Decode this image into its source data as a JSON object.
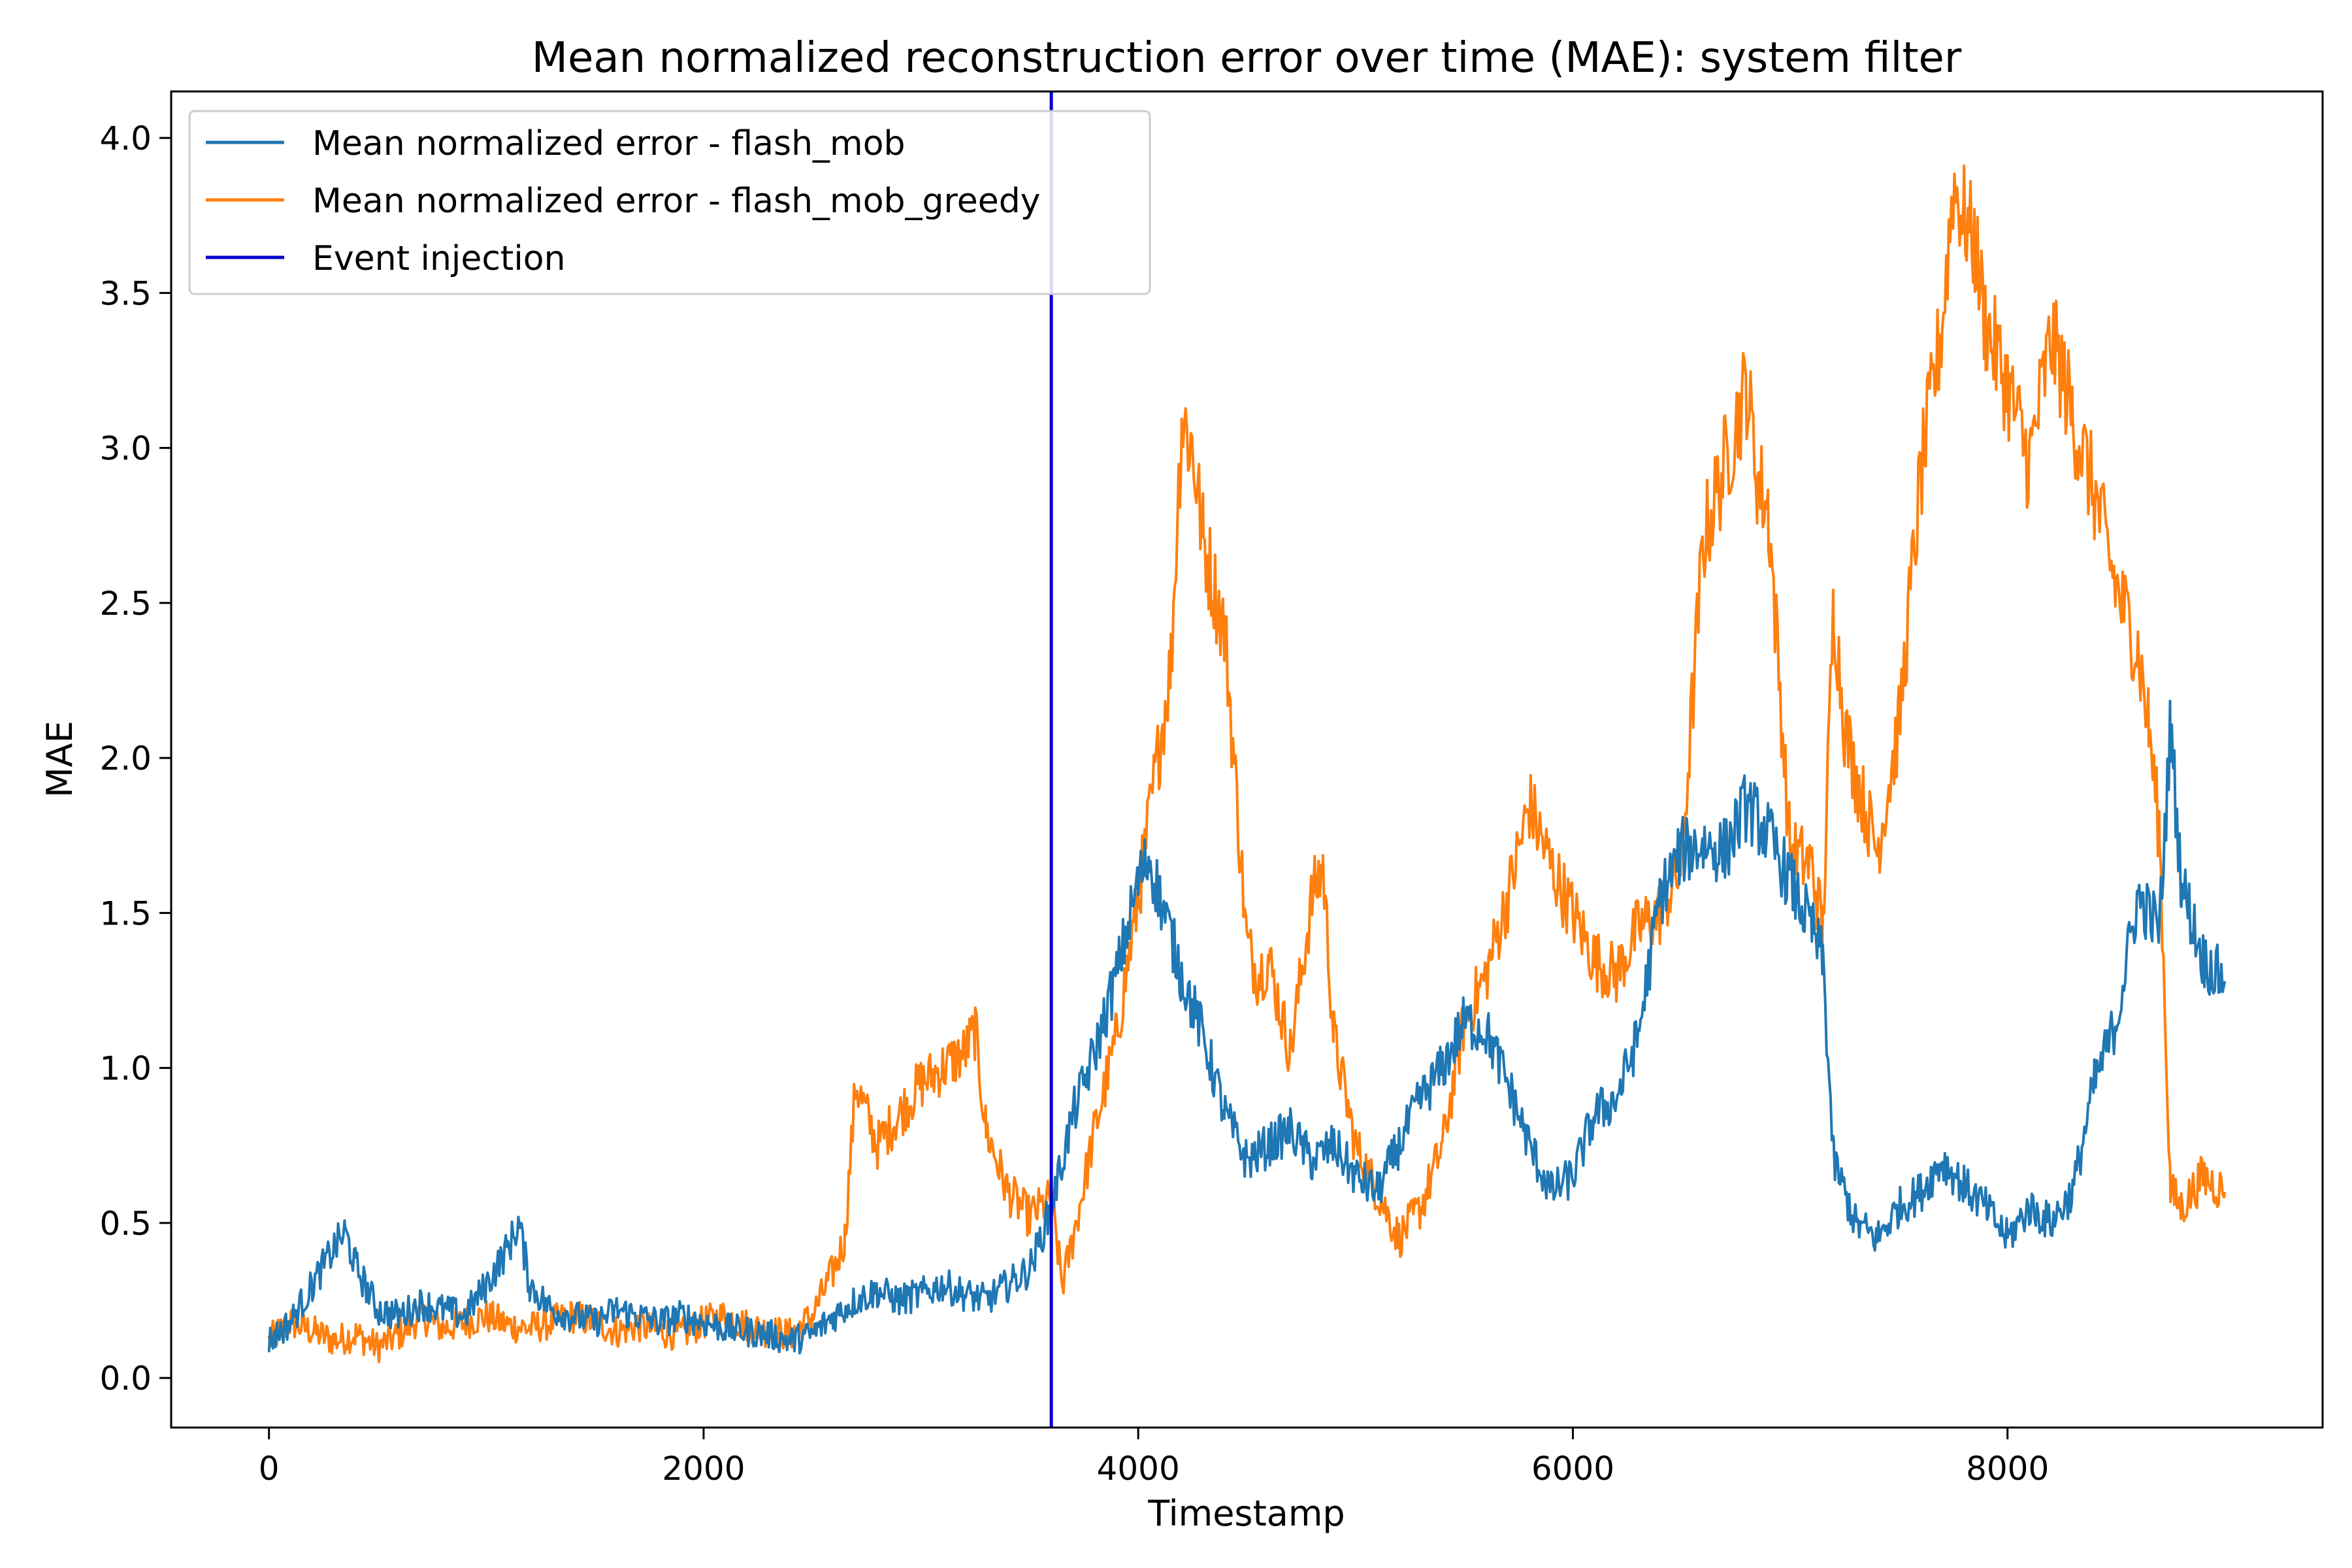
{
  "chart_data": {
    "type": "line",
    "title": "Mean normalized reconstruction error over time (MAE): system filter",
    "xlabel": "Timestamp",
    "ylabel": "MAE",
    "xlim": [
      -450,
      9450
    ],
    "ylim": [
      -0.16,
      4.15
    ],
    "xticks": [
      0,
      2000,
      4000,
      6000,
      8000
    ],
    "xtick_labels": [
      "0",
      "2000",
      "4000",
      "6000",
      "8000"
    ],
    "yticks": [
      0.0,
      0.5,
      1.0,
      1.5,
      2.0,
      2.5,
      3.0,
      3.5,
      4.0
    ],
    "ytick_labels": [
      "0.0",
      "0.5",
      "1.0",
      "1.5",
      "2.0",
      "2.5",
      "3.0",
      "3.5",
      "4.0"
    ],
    "grid": false,
    "legend_position": "upper-left",
    "event_injection_x": 3600,
    "series": [
      {
        "name": "Mean normalized error - flash_mob",
        "color": "#1f77b4",
        "x": [
          0,
          100,
          200,
          300,
          350,
          400,
          500,
          600,
          700,
          800,
          900,
          1000,
          1100,
          1150,
          1200,
          1300,
          1400,
          1500,
          1600,
          1700,
          1800,
          1900,
          2000,
          2100,
          2200,
          2300,
          2400,
          2500,
          2600,
          2700,
          2800,
          2900,
          3000,
          3100,
          3200,
          3300,
          3400,
          3500,
          3600,
          3700,
          3800,
          3900,
          4000,
          4050,
          4100,
          4200,
          4300,
          4400,
          4500,
          4600,
          4700,
          4800,
          4900,
          5000,
          5100,
          5200,
          5300,
          5400,
          5500,
          5600,
          5700,
          5800,
          5900,
          6000,
          6100,
          6200,
          6300,
          6400,
          6500,
          6600,
          6700,
          6800,
          6850,
          6900,
          7000,
          7100,
          7150,
          7200,
          7300,
          7400,
          7500,
          7600,
          7700,
          7800,
          7900,
          8000,
          8100,
          8200,
          8300,
          8400,
          8500,
          8600,
          8700,
          8750,
          8800,
          8900,
          9000
        ],
        "y": [
          0.12,
          0.18,
          0.3,
          0.42,
          0.47,
          0.36,
          0.22,
          0.2,
          0.24,
          0.22,
          0.2,
          0.3,
          0.42,
          0.5,
          0.3,
          0.22,
          0.2,
          0.18,
          0.22,
          0.2,
          0.18,
          0.2,
          0.18,
          0.16,
          0.15,
          0.14,
          0.12,
          0.14,
          0.2,
          0.25,
          0.28,
          0.25,
          0.27,
          0.3,
          0.27,
          0.25,
          0.3,
          0.35,
          0.55,
          0.85,
          1.05,
          1.3,
          1.6,
          1.68,
          1.55,
          1.3,
          1.1,
          0.85,
          0.7,
          0.75,
          0.8,
          0.7,
          0.75,
          0.65,
          0.6,
          0.75,
          0.9,
          1.0,
          1.15,
          1.12,
          0.95,
          0.75,
          0.6,
          0.65,
          0.85,
          0.9,
          1.1,
          1.55,
          1.7,
          1.72,
          1.7,
          1.85,
          1.8,
          1.75,
          1.6,
          1.45,
          1.35,
          0.7,
          0.5,
          0.45,
          0.55,
          0.6,
          0.7,
          0.62,
          0.55,
          0.45,
          0.55,
          0.5,
          0.6,
          0.95,
          1.15,
          1.55,
          1.45,
          2.1,
          1.6,
          1.35,
          1.28
        ]
      },
      {
        "name": "Mean normalized error - flash_mob_greedy",
        "color": "#ff7f0e",
        "x": [
          0,
          100,
          200,
          300,
          400,
          500,
          600,
          700,
          800,
          900,
          1000,
          1100,
          1200,
          1300,
          1400,
          1500,
          1600,
          1700,
          1800,
          1900,
          2000,
          2100,
          2200,
          2300,
          2400,
          2500,
          2600,
          2650,
          2700,
          2800,
          2900,
          3000,
          3100,
          3200,
          3250,
          3300,
          3400,
          3500,
          3600,
          3650,
          3700,
          3800,
          3900,
          4000,
          4100,
          4150,
          4200,
          4250,
          4300,
          4400,
          4500,
          4550,
          4600,
          4700,
          4800,
          4850,
          4900,
          5000,
          5100,
          5200,
          5300,
          5400,
          5500,
          5600,
          5700,
          5800,
          5900,
          6000,
          6100,
          6200,
          6300,
          6400,
          6500,
          6600,
          6700,
          6800,
          6850,
          6900,
          7000,
          7100,
          7150,
          7200,
          7250,
          7300,
          7400,
          7500,
          7600,
          7700,
          7750,
          7800,
          7850,
          7900,
          8000,
          8100,
          8200,
          8250,
          8300,
          8400,
          8500,
          8600,
          8650,
          8700,
          8750,
          8800,
          8900,
          9000
        ],
        "y": [
          0.12,
          0.18,
          0.15,
          0.12,
          0.14,
          0.1,
          0.14,
          0.2,
          0.16,
          0.18,
          0.2,
          0.17,
          0.16,
          0.18,
          0.2,
          0.18,
          0.15,
          0.17,
          0.15,
          0.14,
          0.18,
          0.2,
          0.17,
          0.15,
          0.14,
          0.2,
          0.35,
          0.45,
          0.95,
          0.75,
          0.85,
          0.95,
          1.0,
          1.05,
          1.12,
          0.8,
          0.6,
          0.52,
          0.58,
          0.3,
          0.45,
          0.8,
          1.1,
          1.55,
          2.05,
          2.3,
          3.1,
          3.0,
          2.7,
          2.4,
          1.4,
          1.3,
          1.35,
          1.05,
          1.55,
          1.65,
          1.1,
          0.75,
          0.6,
          0.45,
          0.55,
          0.75,
          1.15,
          1.3,
          1.55,
          1.85,
          1.65,
          1.5,
          1.35,
          1.3,
          1.45,
          1.5,
          1.65,
          2.7,
          2.95,
          3.2,
          2.9,
          2.8,
          1.7,
          1.65,
          1.45,
          2.5,
          2.1,
          1.95,
          1.7,
          2.1,
          2.9,
          3.4,
          3.85,
          3.75,
          3.65,
          3.4,
          3.2,
          2.95,
          3.35,
          3.25,
          3.1,
          2.85,
          2.55,
          2.35,
          2.1,
          1.75,
          0.6,
          0.55,
          0.65,
          0.6
        ]
      },
      {
        "name": "Event injection",
        "color": "#0000cc"
      }
    ]
  }
}
